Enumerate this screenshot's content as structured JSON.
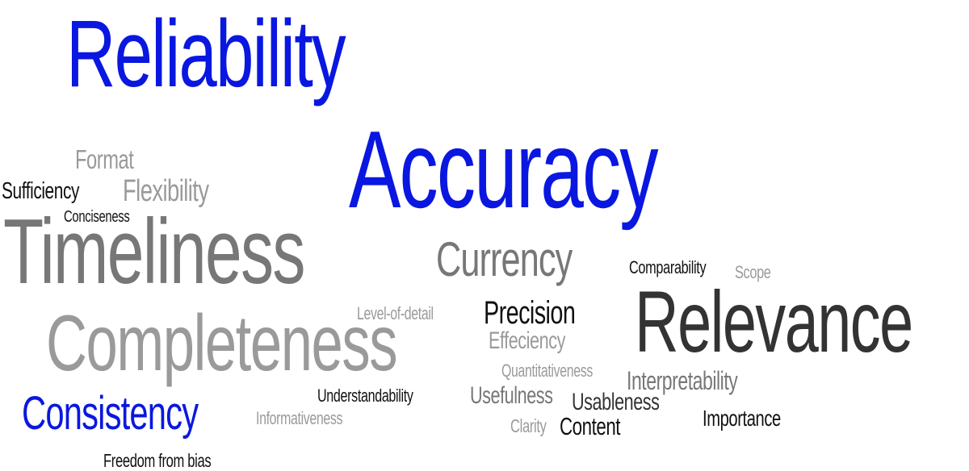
{
  "words": {
    "reliability": "Reliability",
    "accuracy": "Accuracy",
    "timeliness": "Timeliness",
    "completeness": "Completeness",
    "relevance": "Relevance",
    "currency": "Currency",
    "consistency": "Consistency",
    "format": "Format",
    "flexibility": "Flexibility",
    "sufficiency": "Sufficiency",
    "conciseness": "Conciseness",
    "precision": "Precision",
    "level_of_detail": "Level-of-detail",
    "effeciency": "Effeciency",
    "comparability": "Comparability",
    "scope": "Scope",
    "quantitativeness": "Quantitativeness",
    "interpretability": "Interpretability",
    "understandability": "Understandability",
    "usefulness": "Usefulness",
    "usableness": "Usableness",
    "importance": "Importance",
    "informativeness": "Informativeness",
    "clarity": "Clarity",
    "content": "Content",
    "freedom_from_bias": "Freedom from bias"
  },
  "colors": {
    "blue": "#0a17e0",
    "dark": "#333333",
    "black": "#111111",
    "mid_gray": "#777777",
    "light_gray": "#9a9a9a",
    "background": "#ffffff"
  }
}
